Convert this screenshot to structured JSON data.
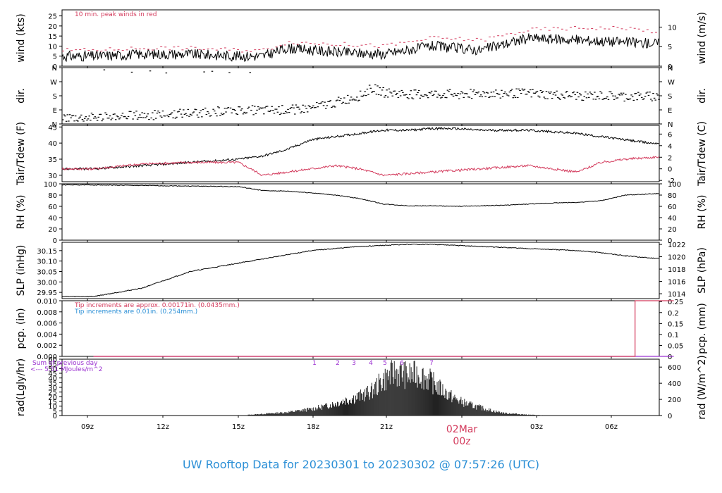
{
  "footer_title": "UW Rooftop Data for 20230301  to  20230302 @ 07:57:26  (UTC)",
  "colors": {
    "primary": "#000000",
    "secondary": "#d33a5c",
    "tip_blue": "#2b8fd6",
    "purple": "#9b30d0",
    "rad_bars": "#222222"
  },
  "time_axis": {
    "ticks": [
      "09z",
      "12z",
      "15z",
      "18z",
      "21z",
      "02Mar",
      "03z",
      "06z"
    ],
    "day_marker": "02Mar",
    "day_marker_sub": "00z"
  },
  "chart_data": [
    {
      "id": "wind",
      "type": "line",
      "ylabel_left": "wind (kts)",
      "ylabel_right": "wind (m/s)",
      "ylim": [
        0,
        28
      ],
      "yticks_left": [
        0,
        5,
        10,
        15,
        20,
        25
      ],
      "yticks_right": [
        0,
        5,
        10
      ],
      "right_scale": "m/s",
      "annotation": "10 min. peak winds in red",
      "x": [
        0,
        2,
        4,
        6,
        7,
        8,
        10,
        12,
        14,
        16,
        18,
        20,
        22,
        24
      ],
      "series": [
        {
          "name": "",
          "color": "#000000",
          "values": [
            5,
            6,
            6,
            5,
            5,
            9,
            7,
            6,
            10,
            8,
            14,
            13,
            12,
            11
          ]
        },
        {
          "name": "",
          "color": "#d33a5c",
          "values": [
            8,
            9,
            9,
            8,
            8,
            12,
            11,
            10,
            14,
            13,
            18,
            19,
            19,
            16
          ]
        }
      ]
    },
    {
      "id": "dir",
      "type": "scatter",
      "ylabel_left": "dir.",
      "ylabel_right": "dir.",
      "yticks_left": [
        "N",
        "E",
        "S",
        "W",
        "N"
      ],
      "yticks_right": [
        "N",
        "E",
        "S",
        "W",
        "N"
      ],
      "ylim": [
        0,
        360
      ],
      "x": [
        0,
        1,
        2,
        3,
        4,
        5,
        6,
        7,
        8,
        9,
        10,
        11,
        11.5,
        12,
        13,
        14,
        15,
        16,
        17,
        18,
        19,
        20,
        21,
        22,
        23,
        24
      ],
      "values": [
        40,
        50,
        55,
        60,
        70,
        80,
        90,
        85,
        90,
        100,
        140,
        180,
        230,
        200,
        190,
        190,
        190,
        195,
        195,
        195,
        185,
        180,
        180,
        175,
        175,
        170
      ]
    },
    {
      "id": "temp",
      "type": "line",
      "ylabel_left": "Tair/Tdew (F)",
      "ylabel_right": "Tair/Tdew (C)",
      "ylim": [
        28,
        45.5
      ],
      "yticks_left": [
        30,
        35,
        40,
        45
      ],
      "yticks_right": [
        -2,
        0,
        2,
        4,
        6
      ],
      "right_scale": "C",
      "x": [
        0,
        2,
        4,
        6,
        7,
        8,
        9,
        10,
        11,
        12,
        13,
        14,
        15,
        16,
        17,
        18,
        19,
        20,
        21,
        22,
        23,
        24
      ],
      "series": [
        {
          "name": "",
          "color": "#000000",
          "values": [
            32,
            33,
            34,
            35,
            36,
            38,
            41,
            42,
            43,
            44,
            44,
            44.5,
            44.5,
            44,
            44,
            44,
            43.5,
            43,
            42,
            41,
            40,
            40
          ]
        },
        {
          "name": "",
          "color": "#d33a5c",
          "values": [
            32,
            33.5,
            34,
            34,
            30,
            31,
            32,
            33,
            32,
            30,
            30.5,
            31,
            31.5,
            32,
            32.5,
            33,
            32,
            31,
            34,
            35,
            35.5,
            36
          ]
        }
      ]
    },
    {
      "id": "rh",
      "type": "line",
      "ylabel_left": "RH (%)",
      "ylabel_right": "RH (%)",
      "ylim": [
        0,
        100
      ],
      "yticks_left": [
        0,
        20,
        40,
        60,
        80,
        100
      ],
      "yticks_right": [
        0,
        20,
        40,
        60,
        80,
        100
      ],
      "right_scale": "same",
      "x": [
        0,
        2,
        4,
        6,
        7,
        8,
        9,
        10,
        11,
        12,
        13,
        14,
        15,
        16,
        17,
        18,
        19,
        20,
        21,
        22,
        23,
        24
      ],
      "series": [
        {
          "name": "",
          "color": "#000000",
          "values": [
            98,
            97,
            96,
            95,
            88,
            87,
            84,
            80,
            74,
            64,
            61,
            61,
            60,
            61,
            62,
            64,
            66,
            67,
            70,
            80,
            82,
            84
          ]
        }
      ]
    },
    {
      "id": "slp",
      "type": "line",
      "ylabel_left": "SLP (inHg)",
      "ylabel_right": "SLP (hPa)",
      "ylim": [
        29.92,
        30.19
      ],
      "yticks_left": [
        "29.95",
        "30.00",
        "30.05",
        "30.10",
        "30.15"
      ],
      "yticks_right": [
        1014,
        1016,
        1018,
        1020,
        1022
      ],
      "right_scale": "hPa",
      "x": [
        0,
        1,
        2,
        3,
        4,
        5,
        6,
        7,
        8,
        9,
        10,
        11,
        12,
        13,
        14,
        15,
        16,
        17,
        18,
        19,
        20,
        21,
        22,
        23,
        24
      ],
      "series": [
        {
          "name": "",
          "color": "#000000",
          "values": [
            29.93,
            29.95,
            29.97,
            30.01,
            30.05,
            30.07,
            30.09,
            30.11,
            30.13,
            30.15,
            30.16,
            30.17,
            30.175,
            30.18,
            30.18,
            30.175,
            30.17,
            30.165,
            30.16,
            30.155,
            30.15,
            30.14,
            30.125,
            30.115,
            30.11
          ]
        }
      ]
    },
    {
      "id": "pcp",
      "type": "line",
      "ylabel_left": "pcp. (in)",
      "ylabel_right": "pcp. (mm)",
      "ylim": [
        0,
        0.01
      ],
      "yticks_left": [
        "0.000",
        "0.002",
        "0.004",
        "0.006",
        "0.008",
        "0.010"
      ],
      "yticks_right": [
        "0",
        "0.05",
        "0.1",
        "0.15",
        "0.2",
        "0.25"
      ],
      "right_scale": "mm",
      "annotations": [
        {
          "text": "Tip increments are approx. 0.00171in. (0.0435mm.)",
          "color": "#d33a5c"
        },
        {
          "text": "Tip increments are 0.01in. (0.254mm.)",
          "color": "#2b8fd6"
        }
      ],
      "x": [
        0,
        22.4,
        22.4,
        24
      ],
      "series": [
        {
          "name": "",
          "color": "#9b30d0",
          "values": [
            0,
            0,
            0,
            0
          ]
        },
        {
          "name": "",
          "color": "#d33a5c",
          "values": [
            0,
            0,
            0.01,
            0.01
          ]
        }
      ]
    },
    {
      "id": "rad",
      "type": "bar",
      "ylabel_left": "rad(Lgly/hr)",
      "ylabel_right": "rad (W/m^2)",
      "ylim": [
        0,
        60
      ],
      "yticks_left": [
        0,
        5,
        10,
        15,
        20,
        25,
        30,
        35,
        40,
        45,
        50,
        55,
        60
      ],
      "yticks_right": [
        0,
        200,
        400,
        600
      ],
      "right_scale": "W/m2",
      "annotations": [
        {
          "text": "Sum of previous day",
          "color": "#9b30d0"
        },
        {
          "text": "<--- 5.51 MJoules/m^2",
          "color": "#9b30d0"
        }
      ],
      "hour_markers": [
        "1",
        "2",
        "3",
        "4",
        "5",
        "6",
        "7"
      ],
      "x": [
        6.5,
        7,
        7.5,
        8,
        8.5,
        9,
        9.5,
        10,
        10.5,
        11,
        11.5,
        12,
        12.5,
        13,
        13.5,
        14,
        14.5,
        15,
        15.5,
        16,
        16.5,
        17,
        17.5,
        18,
        18.5
      ],
      "values": [
        1,
        2,
        3,
        4,
        6,
        8,
        11,
        15,
        20,
        24,
        30,
        45,
        55,
        50,
        52,
        42,
        30,
        20,
        14,
        10,
        6,
        3,
        2,
        1,
        0.5
      ]
    }
  ]
}
